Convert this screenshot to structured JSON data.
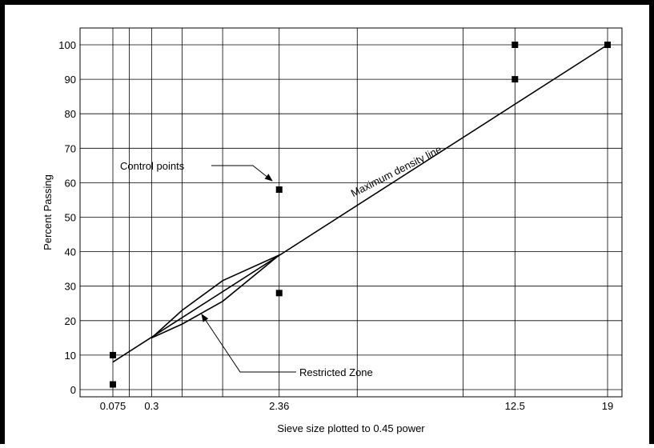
{
  "chart_data": {
    "type": "line",
    "xlabel": "Sieve size plotted to 0.45 power",
    "ylabel": "Percent Passing",
    "x_scale": "power 0.45",
    "xlim": [
      0.075,
      19
    ],
    "ylim": [
      0,
      100
    ],
    "y_ticks": [
      0,
      10,
      20,
      30,
      40,
      50,
      60,
      70,
      80,
      90,
      100
    ],
    "x_tick_labels": [
      {
        "value": 0.075,
        "label": "0.075"
      },
      {
        "value": 0.3,
        "label": "0.3"
      },
      {
        "value": 2.36,
        "label": "2.36"
      },
      {
        "value": 12.5,
        "label": "12.5"
      },
      {
        "value": 19,
        "label": "19"
      }
    ],
    "x_gridlines": [
      0.075,
      0.15,
      0.3,
      0.6,
      1.18,
      2.36,
      4.75,
      9.5,
      12.5,
      19
    ],
    "grid": true,
    "series": [
      {
        "name": "Maximum density line",
        "kind": "line",
        "points": [
          [
            0.075,
            8
          ],
          [
            19,
            100
          ]
        ]
      },
      {
        "name": "Control points",
        "kind": "scatter",
        "points": [
          [
            0.075,
            1.5
          ],
          [
            0.075,
            10
          ],
          [
            2.36,
            28
          ],
          [
            2.36,
            58
          ],
          [
            12.5,
            90
          ],
          [
            12.5,
            100
          ],
          [
            19,
            100
          ]
        ]
      },
      {
        "name": "Restricted Zone",
        "kind": "polygon",
        "points": [
          [
            0.3,
            15
          ],
          [
            0.6,
            23
          ],
          [
            1.18,
            31.6
          ],
          [
            2.36,
            39
          ],
          [
            1.18,
            25.6
          ],
          [
            0.6,
            19
          ],
          [
            0.3,
            15
          ]
        ]
      }
    ],
    "annotations": [
      {
        "text": "Maximum density line",
        "rotation": -27
      },
      {
        "text": "Control points"
      },
      {
        "text": "Restricted Zone"
      }
    ]
  }
}
